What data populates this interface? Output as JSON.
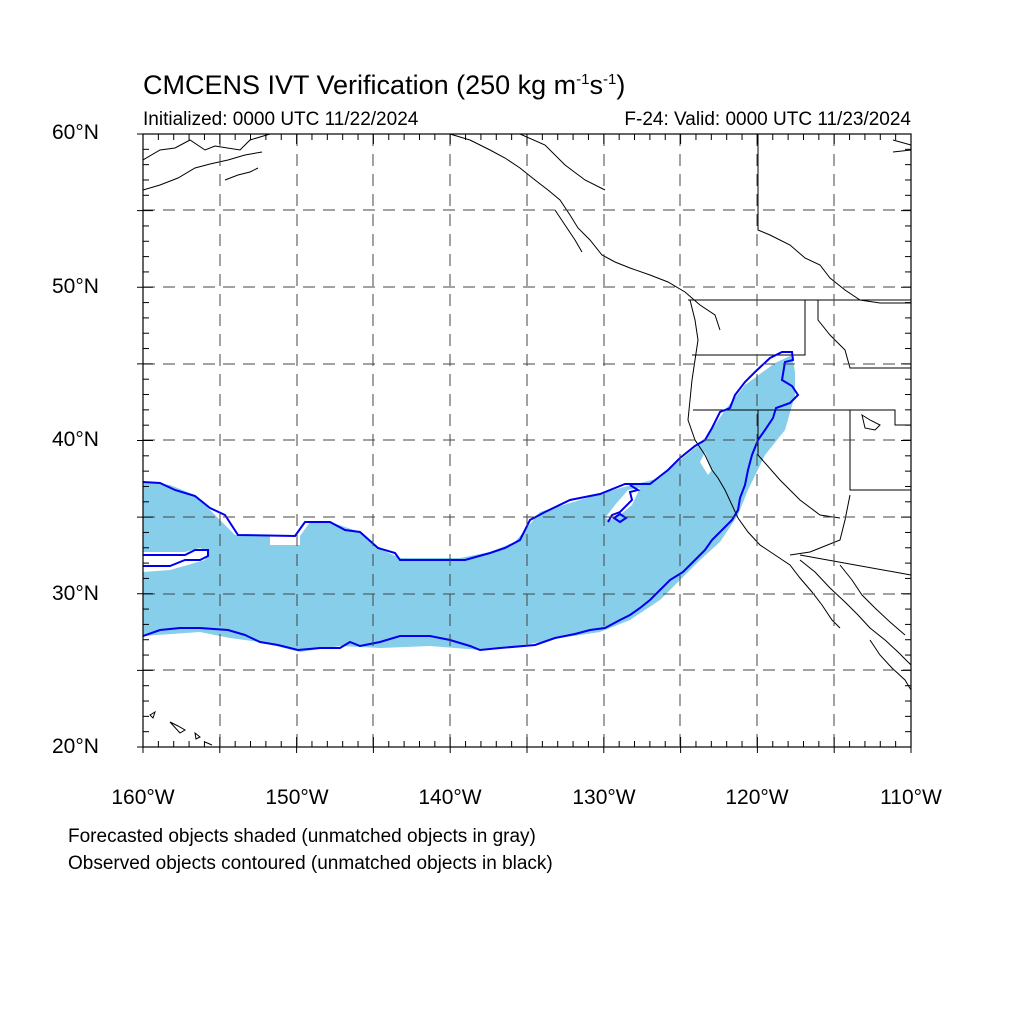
{
  "title": {
    "main": "CMCENS IVT Verification (250 kg m",
    "sup1": "-1",
    "mid": "s",
    "sup2": "-1",
    "end": ")"
  },
  "subtitle_left": "Initialized: 0000 UTC 11/22/2024",
  "subtitle_right": "F-24: Valid: 0000 UTC 11/23/2024",
  "lat_labels": [
    "60°N",
    "50°N",
    "40°N",
    "30°N",
    "20°N"
  ],
  "lon_labels": [
    "160°W",
    "150°W",
    "140°W",
    "130°W",
    "120°W",
    "110°W"
  ],
  "footer_1": "Forecasted objects shaded (unmatched objects in gray)",
  "footer_2": "Observed objects contoured (unmatched objects in black)",
  "map_extent": {
    "lon": [
      -160,
      -110
    ],
    "lat": [
      20,
      60
    ]
  },
  "colors": {
    "forecast_fill": "#87ceeb",
    "observed_contour": "#0000ee",
    "grid": "#444444"
  }
}
